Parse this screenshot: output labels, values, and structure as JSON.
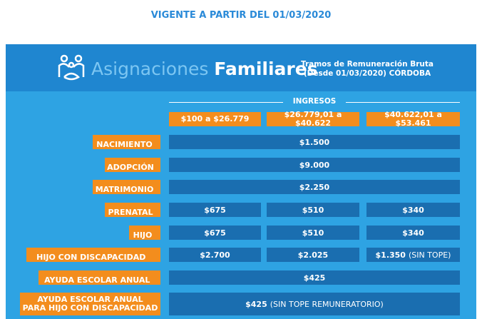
{
  "header": {
    "title": "VIGENTE A PARTIR DEL 01/03/2020",
    "brand_light": "Asignaciones",
    "brand_bold": "Familiares",
    "subtitle": [
      "Tramos de Remuneración Bruta",
      "(Desde 01/03/2020) CÓRDOBA"
    ]
  },
  "table": {
    "group_label": "INGRESOS",
    "columns": [
      "$100 a $26.779",
      "$26.779,01 a $40.622",
      "$40.622,01 a $53.461"
    ],
    "rows": [
      {
        "label": [
          "NACIMIENTO"
        ],
        "cells": [
          "$1.500"
        ]
      },
      {
        "label": [
          "ADOPCIÓN"
        ],
        "cells": [
          "$9.000"
        ]
      },
      {
        "label": [
          "MATRIMONIO"
        ],
        "cells": [
          "$2.250"
        ]
      },
      {
        "label": [
          "PRENATAL"
        ],
        "cells": [
          "$675",
          "$510",
          "$340"
        ]
      },
      {
        "label": [
          "HIJO"
        ],
        "cells": [
          "$675",
          "$510",
          "$340"
        ]
      },
      {
        "label": [
          "HIJO CON DISCAPACIDAD"
        ],
        "cells": [
          "$2.700",
          "$2.025",
          {
            "amount": "$1.350",
            "note": "(SIN TOPE)"
          }
        ]
      },
      {
        "label": [
          "AYUDA ESCOLAR ANUAL"
        ],
        "cells": [
          "$425"
        ]
      },
      {
        "label": [
          "AYUDA ESCOLAR ANUAL",
          "PARA HIJO CON DISCAPACIDAD"
        ],
        "cells": [
          {
            "amount": "$425",
            "note": "(SIN TOPE REMUNERATORIO)"
          }
        ]
      }
    ]
  }
}
